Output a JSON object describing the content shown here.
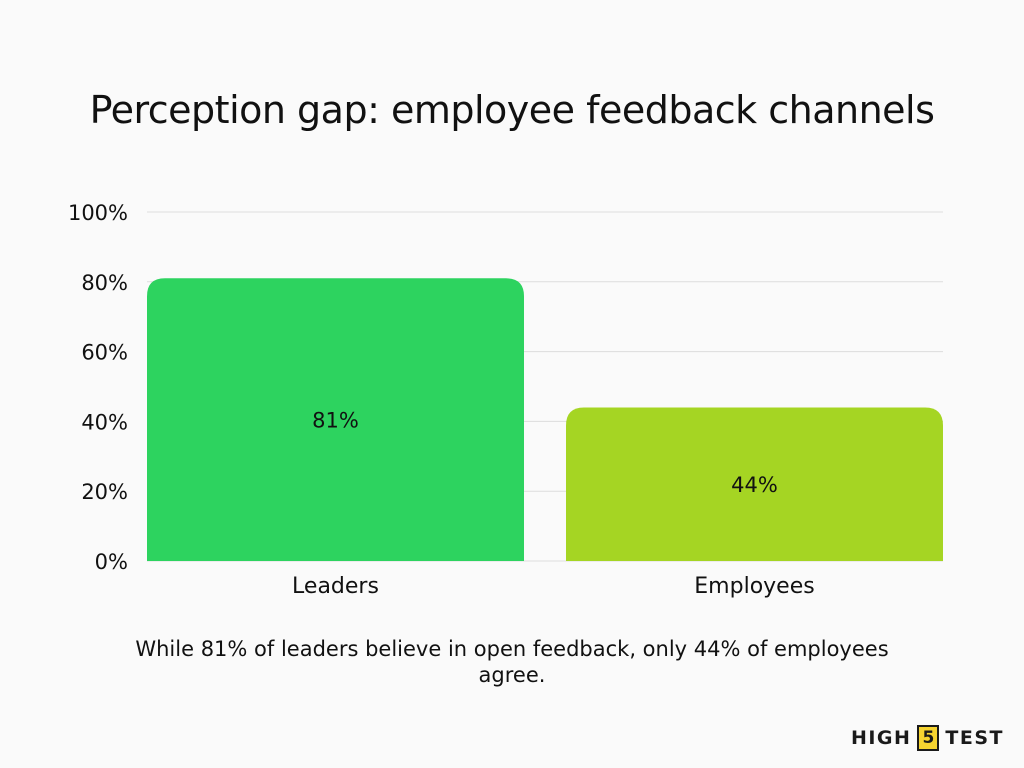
{
  "chart_data": {
    "type": "bar",
    "title": "Perception gap: employee feedback channels",
    "categories": [
      "Leaders",
      "Employees"
    ],
    "values": [
      81,
      44
    ],
    "value_labels": [
      "81%",
      "44%"
    ],
    "bar_colors": [
      "#2dd35f",
      "#a5d523"
    ],
    "ylim": [
      0,
      100
    ],
    "yticks": [
      0,
      20,
      40,
      60,
      80,
      100
    ],
    "ytick_labels": [
      "0%",
      "20%",
      "40%",
      "60%",
      "80%",
      "100%"
    ],
    "xlabel": "",
    "ylabel": "",
    "grid": true,
    "caption": "While 81% of leaders believe in open feedback, only 44% of employees agree."
  },
  "brand": {
    "word1": "HIGH",
    "number": "5",
    "word2": "TEST",
    "accent": "#f5d330"
  }
}
